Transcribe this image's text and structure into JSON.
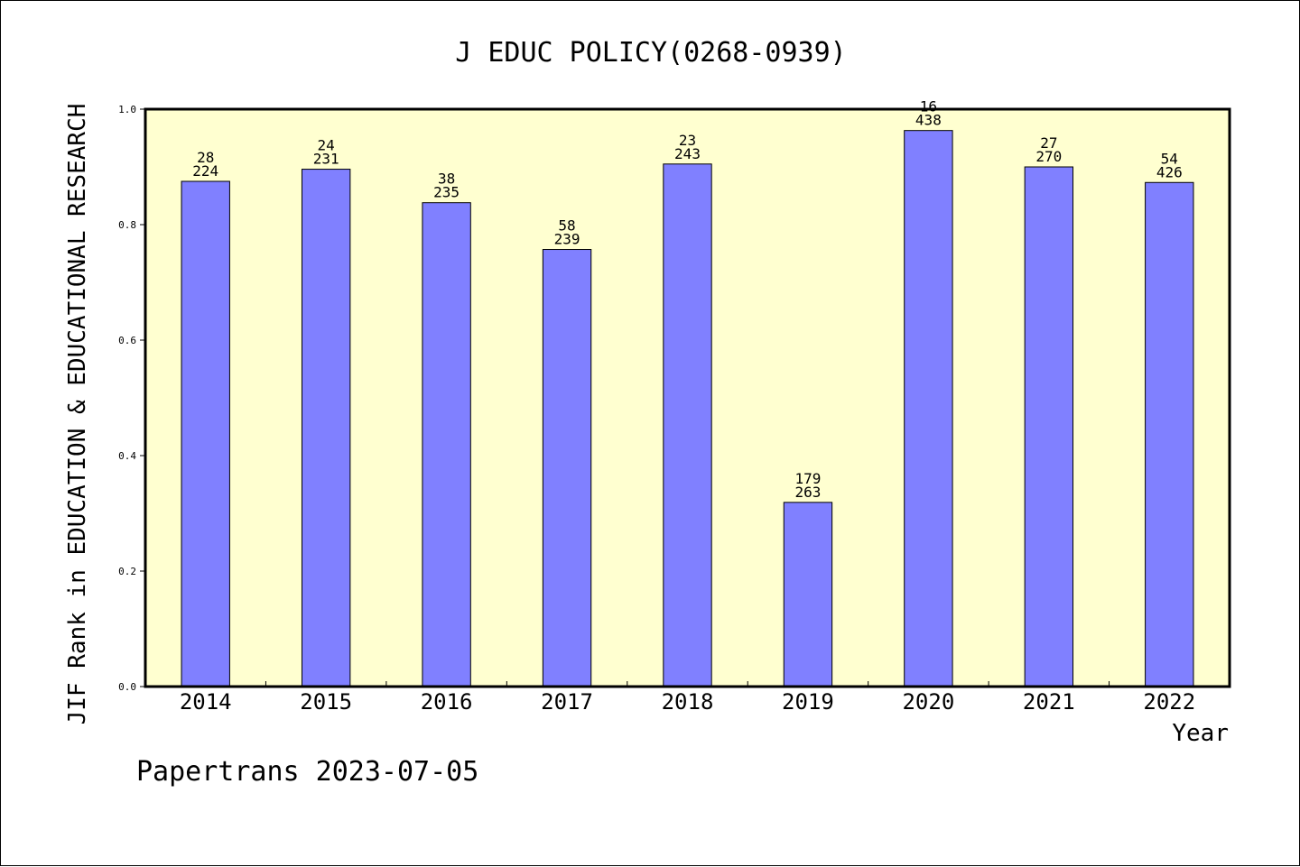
{
  "chart_data": {
    "type": "bar",
    "title": "J EDUC POLICY(0268-0939)",
    "xlabel": "Year",
    "ylabel": "JIF Rank in EDUCATION & EDUCATIONAL RESEARCH",
    "ylim": [
      0,
      1
    ],
    "yticks": [
      "0.0",
      "0.2",
      "0.4",
      "0.6",
      "0.8",
      "1.0"
    ],
    "grid": false,
    "categories": [
      "2014",
      "2015",
      "2016",
      "2017",
      "2018",
      "2019",
      "2020",
      "2021",
      "2022"
    ],
    "values": [
      0.875,
      0.896,
      0.838,
      0.757,
      0.905,
      0.319,
      0.963,
      0.9,
      0.873
    ],
    "ranks": [
      "28",
      "24",
      "38",
      "58",
      "23",
      "179",
      "16",
      "27",
      "54"
    ],
    "totals": [
      "224",
      "231",
      "235",
      "239",
      "243",
      "263",
      "438",
      "270",
      "426"
    ],
    "colors": {
      "plot_background": "#ffffd0",
      "bar_fill": "#8080ff",
      "axis": "#000000"
    }
  },
  "footer": "Papertrans 2023-07-05"
}
